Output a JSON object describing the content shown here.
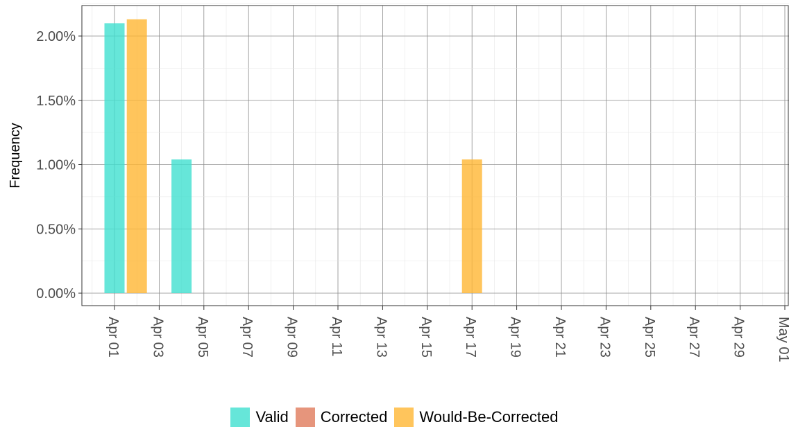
{
  "chart_data": {
    "type": "bar",
    "ylabel": "Frequency",
    "xlabel": "",
    "x_ticks": [
      "Apr 01",
      "Apr 03",
      "Apr 05",
      "Apr 07",
      "Apr 09",
      "Apr 11",
      "Apr 13",
      "Apr 15",
      "Apr 17",
      "Apr 19",
      "Apr 21",
      "Apr 23",
      "Apr 25",
      "Apr 27",
      "Apr 29",
      "May 01"
    ],
    "y_ticks": [
      "0.00%",
      "0.50%",
      "1.00%",
      "1.50%",
      "2.00%"
    ],
    "ylim": [
      0,
      0.0225
    ],
    "xlim": [
      "2021-03-31",
      "2021-05-01"
    ],
    "grid": true,
    "legend_position": "bottom",
    "series": [
      {
        "name": "Valid",
        "color": "#40E0D0",
        "points": [
          {
            "x": "2021-04-01",
            "y": 0.021
          },
          {
            "x": "2021-04-04",
            "y": 0.0104
          }
        ]
      },
      {
        "name": "Corrected",
        "color": "#E07B5B",
        "points": []
      },
      {
        "name": "Would-Be-Corrected",
        "color": "#FFB733",
        "points": [
          {
            "x": "2021-04-02",
            "y": 0.0213
          },
          {
            "x": "2021-04-17",
            "y": 0.0104
          }
        ]
      }
    ]
  }
}
